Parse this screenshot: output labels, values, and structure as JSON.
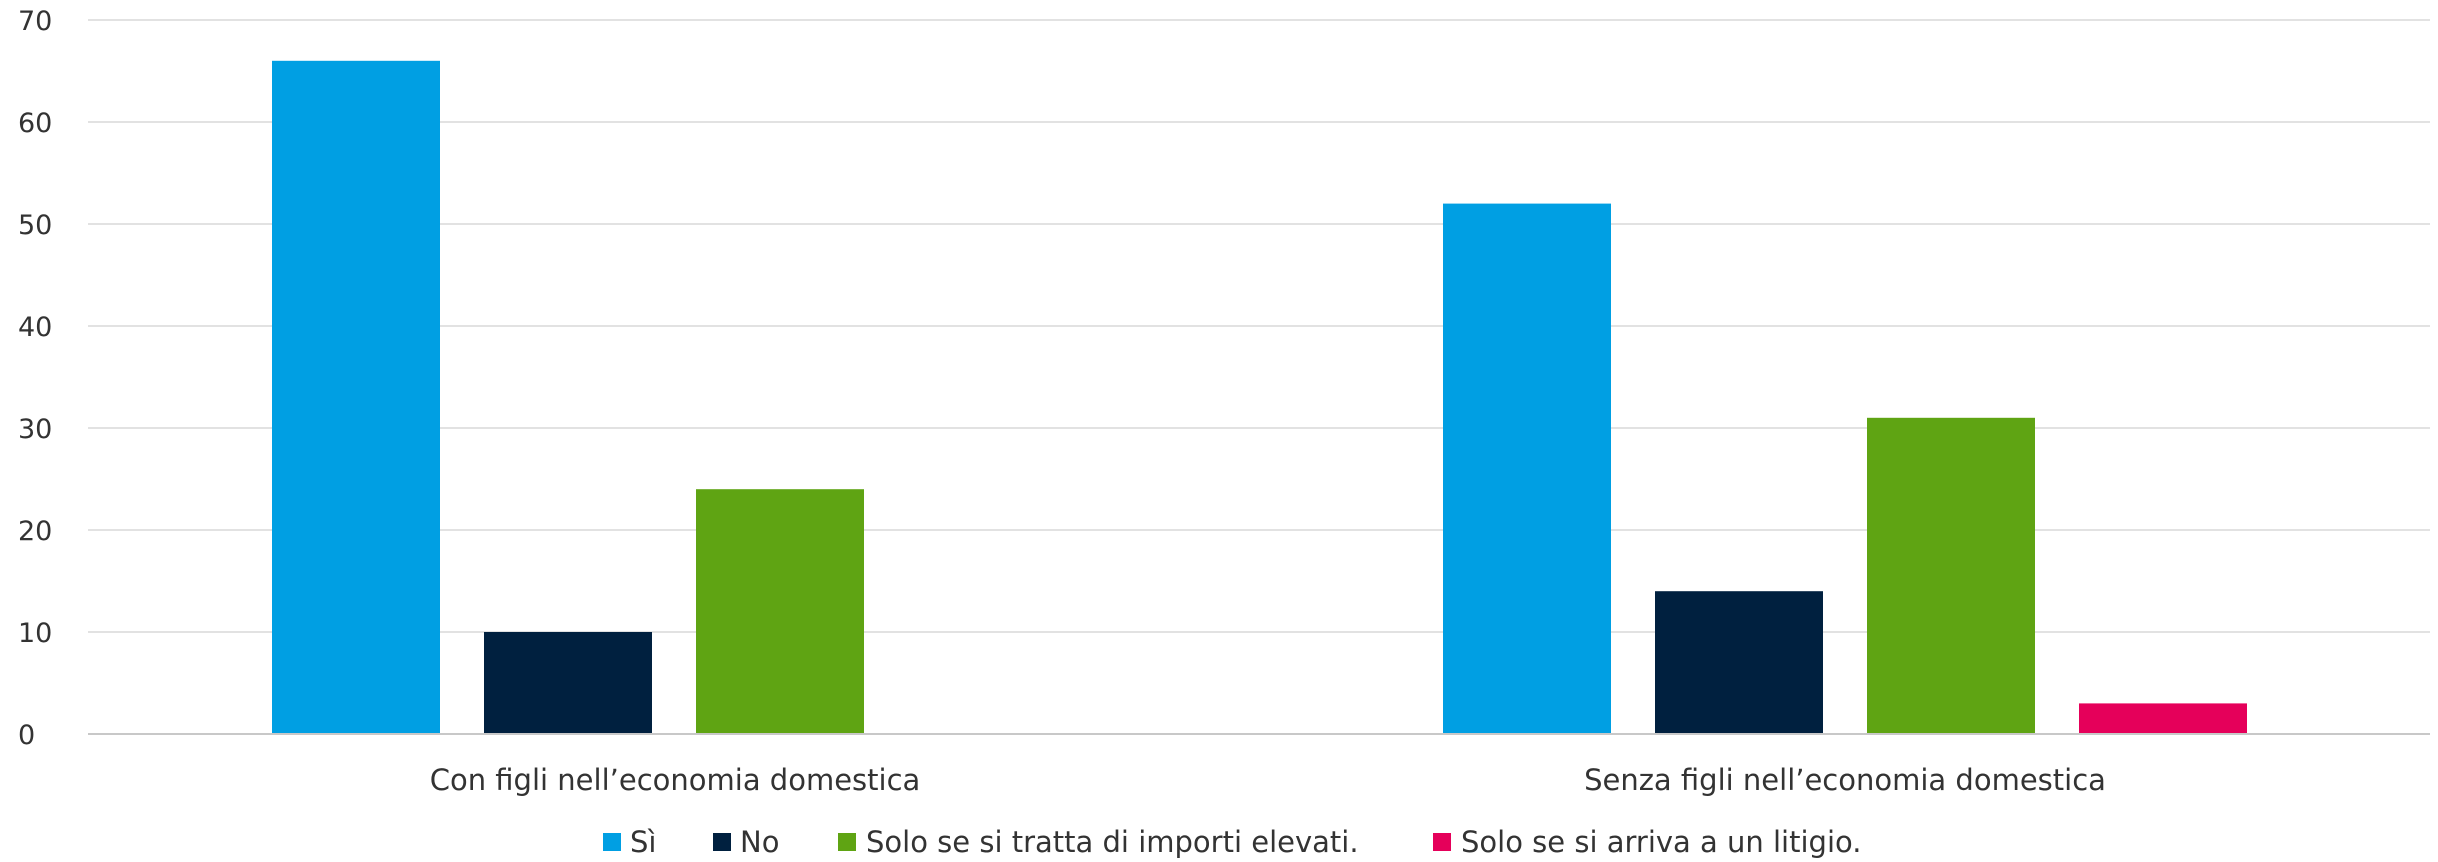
{
  "chart_data": {
    "type": "bar",
    "categories": [
      "Con figli nell’economia domestica",
      "Senza figli nell’economia domestica"
    ],
    "series": [
      {
        "name": "Sì",
        "color": "#009FE3",
        "values": [
          66,
          52
        ]
      },
      {
        "name": "No",
        "color": "#00203F",
        "values": [
          10,
          14
        ]
      },
      {
        "name": "Solo se si tratta di importi elevati.",
        "color": "#5FA413",
        "values": [
          24,
          31
        ]
      },
      {
        "name": "Solo se si arriva a un litigio.",
        "color": "#E5005A",
        "values": [
          0,
          3
        ]
      }
    ],
    "ylim": [
      0,
      70
    ],
    "yticks": [
      "0",
      "10",
      "20",
      "30",
      "40",
      "50",
      "60",
      "70"
    ],
    "title": "",
    "xlabel": "",
    "ylabel": "",
    "grid": true,
    "legend_position": "bottom-center"
  }
}
